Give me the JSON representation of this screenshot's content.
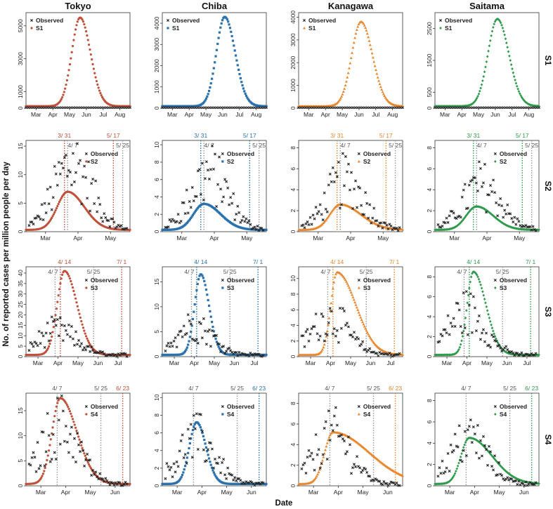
{
  "figure": {
    "xlabel": "Date",
    "ylabel": "No. of reported cases per million people per day",
    "columns": [
      "Tokyo",
      "Chiba",
      "Kanagawa",
      "Saitama"
    ],
    "rows": [
      "S1",
      "S2",
      "S3",
      "S4"
    ],
    "observed_label": "Observed"
  },
  "colors": {
    "Tokyo": "#c0503a",
    "Chiba": "#2b72ad",
    "Kanagawa": "#e8862c",
    "Saitama": "#2e9a4c",
    "observed": "#222222",
    "event": "#999999"
  },
  "markers": {
    "Tokyo": "circle",
    "Chiba": "square",
    "Kanagawa": "triangle",
    "Saitama": "diamond"
  },
  "chart_data": [
    {
      "type": "scatter",
      "region": "Tokyo",
      "scenario": "S1",
      "series_label": "S1",
      "ylim": [
        0,
        5800
      ],
      "yticks": [
        0,
        1000,
        3000,
        5000
      ],
      "xticks": [
        "Mar",
        "Apr",
        "May",
        "Jun",
        "Jul",
        "Aug"
      ],
      "peak": 5500,
      "peak_pos": 0.52,
      "rise": 0.08,
      "fall": 0.1,
      "events": [],
      "date_labels": []
    },
    {
      "type": "scatter",
      "region": "Chiba",
      "scenario": "S1",
      "series_label": "S1",
      "ylim": [
        0,
        4500
      ],
      "yticks": [
        0,
        1000,
        2000,
        3000,
        4000
      ],
      "xticks": [
        "Mar",
        "Apr",
        "May",
        "Jun",
        "Jul",
        "Aug"
      ],
      "peak": 4300,
      "peak_pos": 0.6,
      "rise": 0.08,
      "fall": 0.1,
      "events": [],
      "date_labels": []
    },
    {
      "type": "scatter",
      "region": "Kanagawa",
      "scenario": "S1",
      "series_label": "S1",
      "ylim": [
        0,
        4200
      ],
      "yticks": [
        0,
        1000,
        2000,
        3000,
        4000
      ],
      "xticks": [
        "Mar",
        "Apr",
        "May",
        "Jun",
        "Jul",
        "Aug"
      ],
      "peak": 3800,
      "peak_pos": 0.6,
      "rise": 0.09,
      "fall": 0.11,
      "events": [],
      "date_labels": []
    },
    {
      "type": "scatter",
      "region": "Saitama",
      "scenario": "S1",
      "series_label": "S1",
      "ylim": [
        0,
        3000
      ],
      "yticks": [
        0,
        500,
        1500,
        2500
      ],
      "xticks": [
        "Mar",
        "Apr",
        "May",
        "Jun",
        "Jul",
        "Aug"
      ],
      "peak": 2800,
      "peak_pos": 0.6,
      "rise": 0.09,
      "fall": 0.11,
      "events": [],
      "date_labels": []
    },
    {
      "type": "scatter",
      "region": "Tokyo",
      "scenario": "S2",
      "series_label": "S2",
      "ylim": [
        0,
        16
      ],
      "yticks": [
        0,
        5,
        10,
        15
      ],
      "xticks": [
        "Mar",
        "Apr",
        "May"
      ],
      "peak": 7,
      "peak_pos": 0.4,
      "rise": 0.1,
      "fall": 0.16,
      "obs_peak": 13.5,
      "obs_pos": 0.45,
      "events": [
        {
          "pos": 0.37,
          "color": "region"
        },
        {
          "pos": 0.4,
          "color": "grey"
        },
        {
          "pos": 0.84,
          "color": "region"
        },
        {
          "pos": 0.93,
          "color": "grey"
        }
      ],
      "date_labels": [
        {
          "text": "3/ 31",
          "pos": 0.37,
          "row": 0,
          "color": "region"
        },
        {
          "text": "5/ 17",
          "pos": 0.84,
          "row": 0,
          "color": "region"
        },
        {
          "text": "4/ 7",
          "pos": 0.45,
          "row": 1,
          "color": "grey"
        },
        {
          "text": "5/ 25",
          "pos": 0.93,
          "row": 1,
          "color": "grey"
        }
      ]
    },
    {
      "type": "scatter",
      "region": "Chiba",
      "scenario": "S2",
      "series_label": "S2",
      "ylim": [
        0,
        10.5
      ],
      "yticks": [
        0,
        2,
        4,
        6,
        8,
        10
      ],
      "xticks": [
        "Mar",
        "Apr",
        "May"
      ],
      "peak": 3.2,
      "peak_pos": 0.4,
      "rise": 0.1,
      "fall": 0.16,
      "obs_peak": 7.5,
      "obs_pos": 0.45,
      "events": [
        {
          "pos": 0.37,
          "color": "region"
        },
        {
          "pos": 0.4,
          "color": "grey"
        },
        {
          "pos": 0.84,
          "color": "region"
        },
        {
          "pos": 0.93,
          "color": "grey"
        }
      ],
      "date_labels": [
        {
          "text": "3/ 31",
          "pos": 0.37,
          "row": 0,
          "color": "region"
        },
        {
          "text": "5/ 17",
          "pos": 0.84,
          "row": 0,
          "color": "region"
        },
        {
          "text": "4/ 7",
          "pos": 0.45,
          "row": 1,
          "color": "grey"
        },
        {
          "text": "5/ 25",
          "pos": 0.93,
          "row": 1,
          "color": "grey"
        }
      ]
    },
    {
      "type": "scatter",
      "region": "Kanagawa",
      "scenario": "S2",
      "series_label": "S2",
      "ylim": [
        0,
        8.7
      ],
      "yticks": [
        0,
        2,
        4,
        6,
        8
      ],
      "xticks": [
        "Mar",
        "Apr",
        "May"
      ],
      "peak": 2.6,
      "peak_pos": 0.4,
      "rise": 0.1,
      "fall": 0.2,
      "obs_peak": 5.5,
      "obs_pos": 0.45,
      "events": [
        {
          "pos": 0.37,
          "color": "region"
        },
        {
          "pos": 0.4,
          "color": "grey"
        },
        {
          "pos": 0.84,
          "color": "region"
        },
        {
          "pos": 0.93,
          "color": "grey"
        }
      ],
      "date_labels": [
        {
          "text": "3/ 31",
          "pos": 0.37,
          "row": 0,
          "color": "region"
        },
        {
          "text": "5/ 17",
          "pos": 0.84,
          "row": 0,
          "color": "region"
        },
        {
          "text": "4/ 7",
          "pos": 0.45,
          "row": 1,
          "color": "grey"
        },
        {
          "text": "5/ 25",
          "pos": 0.93,
          "row": 1,
          "color": "grey"
        }
      ]
    },
    {
      "type": "scatter",
      "region": "Saitama",
      "scenario": "S2",
      "series_label": "S2",
      "ylim": [
        0,
        8.7
      ],
      "yticks": [
        0,
        2,
        4,
        6,
        8
      ],
      "xticks": [
        "Mar",
        "Apr",
        "May"
      ],
      "peak": 2.4,
      "peak_pos": 0.4,
      "rise": 0.1,
      "fall": 0.16,
      "obs_peak": 5.0,
      "obs_pos": 0.45,
      "events": [
        {
          "pos": 0.37,
          "color": "region"
        },
        {
          "pos": 0.4,
          "color": "grey"
        },
        {
          "pos": 0.84,
          "color": "region"
        },
        {
          "pos": 0.93,
          "color": "grey"
        }
      ],
      "date_labels": [
        {
          "text": "3/ 31",
          "pos": 0.37,
          "row": 0,
          "color": "region"
        },
        {
          "text": "5/ 17",
          "pos": 0.84,
          "row": 0,
          "color": "region"
        },
        {
          "text": "4/ 7",
          "pos": 0.45,
          "row": 1,
          "color": "grey"
        },
        {
          "text": "5/ 25",
          "pos": 0.93,
          "row": 1,
          "color": "grey"
        }
      ]
    },
    {
      "type": "scatter",
      "region": "Tokyo",
      "scenario": "S3",
      "series_label": "S3",
      "ylim": [
        0,
        43
      ],
      "yticks": [
        0,
        5,
        10,
        15,
        20,
        25,
        30,
        35,
        40
      ],
      "xticks": [
        "Mar",
        "Apr",
        "May",
        "Jun",
        "Jul"
      ],
      "peak": 41,
      "peak_pos": 0.37,
      "rise": 0.07,
      "fall": 0.12,
      "obs_peak": 13.5,
      "obs_pos": 0.3,
      "events": [
        {
          "pos": 0.28,
          "color": "grey"
        },
        {
          "pos": 0.33,
          "color": "region"
        },
        {
          "pos": 0.65,
          "color": "grey"
        },
        {
          "pos": 0.92,
          "color": "region"
        }
      ],
      "date_labels": [
        {
          "text": "4/ 14",
          "pos": 0.37,
          "row": 0,
          "color": "region"
        },
        {
          "text": "7/ 1",
          "pos": 0.92,
          "row": 0,
          "color": "region"
        },
        {
          "text": "4/ 7",
          "pos": 0.26,
          "row": 1,
          "color": "grey"
        },
        {
          "text": "5/ 25",
          "pos": 0.65,
          "row": 1,
          "color": "grey"
        }
      ]
    },
    {
      "type": "scatter",
      "region": "Chiba",
      "scenario": "S3",
      "series_label": "S3",
      "ylim": [
        0,
        18
      ],
      "yticks": [
        0,
        5,
        10,
        15
      ],
      "xticks": [
        "Mar",
        "Apr",
        "May",
        "Jun",
        "Jul"
      ],
      "peak": 16.5,
      "peak_pos": 0.37,
      "rise": 0.06,
      "fall": 0.08,
      "obs_peak": 7,
      "obs_pos": 0.3,
      "events": [
        {
          "pos": 0.28,
          "color": "grey"
        },
        {
          "pos": 0.33,
          "color": "region"
        },
        {
          "pos": 0.65,
          "color": "grey"
        },
        {
          "pos": 0.92,
          "color": "region"
        }
      ],
      "date_labels": [
        {
          "text": "4/ 14",
          "pos": 0.37,
          "row": 0,
          "color": "region"
        },
        {
          "text": "7/ 1",
          "pos": 0.92,
          "row": 0,
          "color": "region"
        },
        {
          "text": "4/ 7",
          "pos": 0.26,
          "row": 1,
          "color": "grey"
        },
        {
          "text": "5/ 25",
          "pos": 0.65,
          "row": 1,
          "color": "grey"
        }
      ]
    },
    {
      "type": "scatter",
      "region": "Kanagawa",
      "scenario": "S3",
      "series_label": "S3",
      "ylim": [
        0,
        11.5
      ],
      "yticks": [
        0,
        2,
        4,
        6,
        8,
        10
      ],
      "xticks": [
        "Mar",
        "Apr",
        "May",
        "Jun",
        "Jul"
      ],
      "peak": 10.8,
      "peak_pos": 0.37,
      "rise": 0.06,
      "fall": 0.18,
      "obs_peak": 5.5,
      "obs_pos": 0.3,
      "events": [
        {
          "pos": 0.28,
          "color": "grey"
        },
        {
          "pos": 0.33,
          "color": "region"
        },
        {
          "pos": 0.65,
          "color": "grey"
        },
        {
          "pos": 0.92,
          "color": "region"
        }
      ],
      "date_labels": [
        {
          "text": "4/ 14",
          "pos": 0.37,
          "row": 0,
          "color": "region"
        },
        {
          "text": "7/ 1",
          "pos": 0.92,
          "row": 0,
          "color": "region"
        },
        {
          "text": "4/ 7",
          "pos": 0.26,
          "row": 1,
          "color": "grey"
        },
        {
          "text": "5/ 25",
          "pos": 0.65,
          "row": 1,
          "color": "grey"
        }
      ]
    },
    {
      "type": "scatter",
      "region": "Saitama",
      "scenario": "S3",
      "series_label": "S3",
      "ylim": [
        0,
        9
      ],
      "yticks": [
        0,
        2,
        4,
        6,
        8
      ],
      "xticks": [
        "Mar",
        "Apr",
        "May",
        "Jun",
        "Jul"
      ],
      "peak": 8.5,
      "peak_pos": 0.37,
      "rise": 0.06,
      "fall": 0.12,
      "obs_peak": 5,
      "obs_pos": 0.3,
      "events": [
        {
          "pos": 0.28,
          "color": "grey"
        },
        {
          "pos": 0.33,
          "color": "region"
        },
        {
          "pos": 0.65,
          "color": "grey"
        },
        {
          "pos": 0.92,
          "color": "region"
        }
      ],
      "date_labels": [
        {
          "text": "4/ 14",
          "pos": 0.37,
          "row": 0,
          "color": "region"
        },
        {
          "text": "7/ 1",
          "pos": 0.92,
          "row": 0,
          "color": "region"
        },
        {
          "text": "4/ 7",
          "pos": 0.26,
          "row": 1,
          "color": "grey"
        },
        {
          "text": "5/ 25",
          "pos": 0.65,
          "row": 1,
          "color": "grey"
        }
      ]
    },
    {
      "type": "scatter",
      "region": "Tokyo",
      "scenario": "S4",
      "series_label": "S4",
      "ylim": [
        0,
        18.5
      ],
      "yticks": [
        0,
        5,
        10,
        15
      ],
      "xticks": [
        "Mar",
        "Apr",
        "May",
        "Jun"
      ],
      "peak": 17.5,
      "peak_pos": 0.33,
      "rise": 0.08,
      "fall": 0.16,
      "obs_peak": 13.5,
      "obs_pos": 0.33,
      "events": [
        {
          "pos": 0.3,
          "color": "grey"
        },
        {
          "pos": 0.72,
          "color": "grey"
        },
        {
          "pos": 0.93,
          "color": "region"
        }
      ],
      "date_labels": [
        {
          "text": "4/ 7",
          "pos": 0.3,
          "row": 0,
          "color": "grey"
        },
        {
          "text": "5/ 25",
          "pos": 0.72,
          "row": 0,
          "color": "grey"
        },
        {
          "text": "6/ 23",
          "pos": 0.93,
          "row": 0,
          "color": "region"
        }
      ]
    },
    {
      "type": "scatter",
      "region": "Chiba",
      "scenario": "S4",
      "series_label": "S4",
      "ylim": [
        0,
        10.5
      ],
      "yticks": [
        0,
        2,
        4,
        6,
        8,
        10
      ],
      "xticks": [
        "Mar",
        "Apr",
        "May",
        "Jun"
      ],
      "peak": 7.2,
      "peak_pos": 0.33,
      "rise": 0.07,
      "fall": 0.09,
      "obs_peak": 6,
      "obs_pos": 0.33,
      "events": [
        {
          "pos": 0.3,
          "color": "grey"
        },
        {
          "pos": 0.72,
          "color": "grey"
        },
        {
          "pos": 0.93,
          "color": "region"
        }
      ],
      "date_labels": [
        {
          "text": "4/ 7",
          "pos": 0.3,
          "row": 0,
          "color": "grey"
        },
        {
          "text": "5/ 25",
          "pos": 0.72,
          "row": 0,
          "color": "grey"
        },
        {
          "text": "6/ 23",
          "pos": 0.93,
          "row": 0,
          "color": "region"
        }
      ]
    },
    {
      "type": "scatter",
      "region": "Kanagawa",
      "scenario": "S4",
      "series_label": "S4",
      "ylim": [
        0,
        9
      ],
      "yticks": [
        0,
        2,
        4,
        6,
        8
      ],
      "xticks": [
        "Mar",
        "Apr",
        "May",
        "Jun"
      ],
      "peak": 5.2,
      "peak_pos": 0.33,
      "rise": 0.08,
      "fall": 0.35,
      "obs_peak": 5.5,
      "obs_pos": 0.33,
      "events": [
        {
          "pos": 0.3,
          "color": "grey"
        },
        {
          "pos": 0.72,
          "color": "grey"
        },
        {
          "pos": 0.93,
          "color": "region"
        }
      ],
      "date_labels": [
        {
          "text": "4/ 7",
          "pos": 0.3,
          "row": 0,
          "color": "grey"
        },
        {
          "text": "5/ 25",
          "pos": 0.72,
          "row": 0,
          "color": "grey"
        },
        {
          "text": "6/ 23",
          "pos": 0.93,
          "row": 0,
          "color": "region"
        }
      ]
    },
    {
      "type": "scatter",
      "region": "Saitama",
      "scenario": "S4",
      "series_label": "S4",
      "ylim": [
        0,
        8.7
      ],
      "yticks": [
        0,
        2,
        4,
        6,
        8
      ],
      "xticks": [
        "Mar",
        "Apr",
        "May",
        "Jun"
      ],
      "peak": 4.5,
      "peak_pos": 0.33,
      "rise": 0.08,
      "fall": 0.22,
      "obs_peak": 5,
      "obs_pos": 0.33,
      "events": [
        {
          "pos": 0.3,
          "color": "grey"
        },
        {
          "pos": 0.72,
          "color": "grey"
        },
        {
          "pos": 0.93,
          "color": "region"
        }
      ],
      "date_labels": [
        {
          "text": "4/ 7",
          "pos": 0.3,
          "row": 0,
          "color": "grey"
        },
        {
          "text": "5/ 25",
          "pos": 0.72,
          "row": 0,
          "color": "grey"
        },
        {
          "text": "6/ 23",
          "pos": 0.93,
          "row": 0,
          "color": "region"
        }
      ]
    }
  ]
}
